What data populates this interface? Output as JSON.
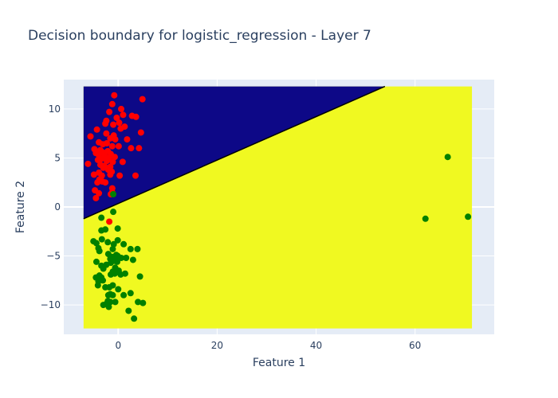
{
  "chart_data": {
    "type": "scatter",
    "title": "Decision boundary for logistic_regression - Layer 7",
    "xlabel": "Feature 1",
    "ylabel": "Feature 2",
    "xlim": [
      -11,
      76
    ],
    "ylim": [
      -13,
      13
    ],
    "x_ticks": [
      0,
      20,
      40,
      60
    ],
    "y_ticks": [
      -10,
      -5,
      0,
      5,
      10
    ],
    "grid": true,
    "background_color": "#e5ecf6",
    "region": {
      "x_range": [
        -7,
        71.5
      ],
      "y_range": [
        -12.4,
        12.3
      ],
      "boundary": [
        [
          -7,
          -1.2
        ],
        [
          53.9,
          12.3
        ]
      ],
      "above_color": "#0d0887",
      "below_color": "#f0f921",
      "boundary_color": "#000000"
    },
    "series": [
      {
        "color": "#ff0000",
        "points": [
          [
            -0.8,
            11.4
          ],
          [
            4.9,
            11.0
          ],
          [
            -1.2,
            10.5
          ],
          [
            0.6,
            10.0
          ],
          [
            -1.8,
            9.7
          ],
          [
            1.0,
            9.4
          ],
          [
            3.6,
            9.2
          ],
          [
            2.8,
            9.3
          ],
          [
            -0.3,
            9.1
          ],
          [
            -2.4,
            8.8
          ],
          [
            0.2,
            8.6
          ],
          [
            -1.0,
            8.4
          ],
          [
            1.3,
            8.2
          ],
          [
            -2.6,
            8.5
          ],
          [
            0.5,
            8.0
          ],
          [
            -4.3,
            7.9
          ],
          [
            4.6,
            7.6
          ],
          [
            -2.4,
            7.5
          ],
          [
            -0.9,
            7.3
          ],
          [
            -5.6,
            7.2
          ],
          [
            -1.6,
            7.0
          ],
          [
            -0.6,
            6.9
          ],
          [
            1.8,
            6.9
          ],
          [
            -3.9,
            6.6
          ],
          [
            -2.3,
            6.5
          ],
          [
            -3.1,
            6.4
          ],
          [
            -1.2,
            6.2
          ],
          [
            0.1,
            6.2
          ],
          [
            2.6,
            6.0
          ],
          [
            4.2,
            6.0
          ],
          [
            -4.8,
            5.9
          ],
          [
            -3.6,
            5.8
          ],
          [
            -2.1,
            5.7
          ],
          [
            -3.2,
            5.6
          ],
          [
            -4.5,
            5.5
          ],
          [
            -1.5,
            5.4
          ],
          [
            -3.9,
            5.3
          ],
          [
            -2.7,
            5.2
          ],
          [
            -0.7,
            5.1
          ],
          [
            -1.9,
            5.0
          ],
          [
            -3.4,
            4.9
          ],
          [
            -4.1,
            4.8
          ],
          [
            -2.3,
            4.7
          ],
          [
            -1.1,
            4.6
          ],
          [
            0.9,
            4.6
          ],
          [
            -6.1,
            4.4
          ],
          [
            -3.6,
            4.3
          ],
          [
            -2.8,
            4.2
          ],
          [
            -1.6,
            4.1
          ],
          [
            -3.0,
            4.0
          ],
          [
            -2.0,
            3.8
          ],
          [
            -1.3,
            3.6
          ],
          [
            -3.9,
            3.5
          ],
          [
            -4.9,
            3.3
          ],
          [
            -1.6,
            3.3
          ],
          [
            -3.3,
            3.2
          ],
          [
            0.3,
            3.2
          ],
          [
            3.5,
            3.2
          ],
          [
            -3.8,
            2.8
          ],
          [
            -3.2,
            2.6
          ],
          [
            -2.6,
            2.5
          ],
          [
            -4.2,
            2.5
          ],
          [
            -1.2,
            1.9
          ],
          [
            -4.7,
            1.7
          ],
          [
            -1.2,
            1.5
          ],
          [
            -3.9,
            1.4
          ],
          [
            -1.5,
            1.3
          ],
          [
            -4.5,
            0.9
          ],
          [
            -1.8,
            -1.5
          ]
        ]
      },
      {
        "color": "#008000",
        "points": [
          [
            -1.0,
            1.3
          ],
          [
            -1.0,
            -0.5
          ],
          [
            -3.4,
            -1.1
          ],
          [
            62.1,
            -1.2
          ],
          [
            70.7,
            -1.0
          ],
          [
            66.6,
            5.1
          ],
          [
            -0.1,
            -2.2
          ],
          [
            -3.4,
            -2.4
          ],
          [
            -2.6,
            -2.3
          ],
          [
            -5.0,
            -3.5
          ],
          [
            -4.4,
            -3.7
          ],
          [
            -0.1,
            -3.4
          ],
          [
            -2.1,
            -3.6
          ],
          [
            -0.9,
            -3.8
          ],
          [
            -3.3,
            -3.3
          ],
          [
            -4.0,
            -4.2
          ],
          [
            -3.8,
            -4.5
          ],
          [
            -1.1,
            -4.3
          ],
          [
            1.1,
            -3.8
          ],
          [
            2.5,
            -4.3
          ],
          [
            3.9,
            -4.3
          ],
          [
            -2.0,
            -4.8
          ],
          [
            -0.4,
            -4.9
          ],
          [
            -1.2,
            -5.1
          ],
          [
            -0.1,
            -5.0
          ],
          [
            0.6,
            -5.2
          ],
          [
            1.6,
            -5.2
          ],
          [
            -1.6,
            -5.3
          ],
          [
            -0.8,
            -5.5
          ],
          [
            -0.2,
            -5.6
          ],
          [
            -1.5,
            -5.7
          ],
          [
            -4.4,
            -5.6
          ],
          [
            3.0,
            -5.4
          ],
          [
            -2.4,
            -5.9
          ],
          [
            -3.4,
            -6.0
          ],
          [
            -0.6,
            -6.2
          ],
          [
            -3.0,
            -6.3
          ],
          [
            0.1,
            -6.5
          ],
          [
            -1.1,
            -6.6
          ],
          [
            -1.5,
            -6.9
          ],
          [
            -0.7,
            -6.8
          ],
          [
            0.5,
            -6.9
          ],
          [
            1.4,
            -6.8
          ],
          [
            -3.8,
            -7.0
          ],
          [
            -3.4,
            -7.2
          ],
          [
            -4.5,
            -7.2
          ],
          [
            -3.1,
            -7.5
          ],
          [
            -4.0,
            -7.6
          ],
          [
            -4.1,
            -8.0
          ],
          [
            -2.6,
            -8.2
          ],
          [
            -1.1,
            -8.0
          ],
          [
            -1.8,
            -8.2
          ],
          [
            4.4,
            -7.1
          ],
          [
            0.0,
            -8.4
          ],
          [
            -1.6,
            -8.9
          ],
          [
            -2.0,
            -9.0
          ],
          [
            -1.1,
            -9.0
          ],
          [
            1.1,
            -9.0
          ],
          [
            2.5,
            -8.8
          ],
          [
            -2.1,
            -9.6
          ],
          [
            -1.6,
            -9.7
          ],
          [
            -0.6,
            -9.7
          ],
          [
            -2.4,
            -9.9
          ],
          [
            -3.0,
            -10.0
          ],
          [
            -1.9,
            -10.2
          ],
          [
            4.0,
            -9.7
          ],
          [
            5.0,
            -9.8
          ],
          [
            2.1,
            -10.6
          ],
          [
            3.2,
            -11.4
          ]
        ]
      }
    ]
  }
}
